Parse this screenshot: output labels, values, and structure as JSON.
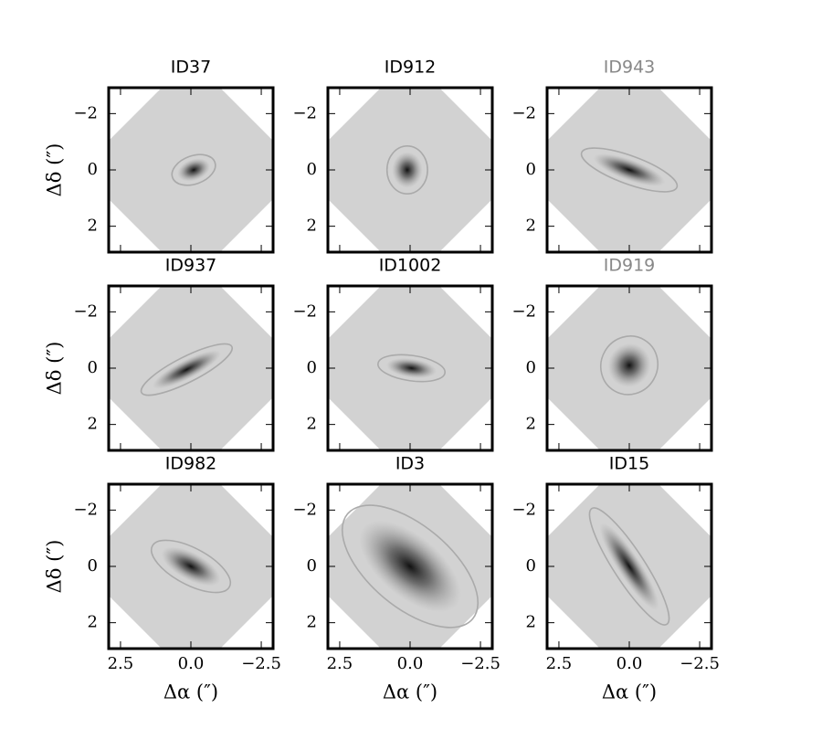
{
  "chart_data": [
    {
      "type": "image",
      "title": "ID37",
      "title_color": "#000000",
      "xlim": [
        2.92,
        -2.92
      ],
      "ylim": [
        2.92,
        -2.92
      ],
      "xticks": [
        2.5,
        0,
        -2.5
      ],
      "yticks": [
        {
          "value": -2,
          "label": "−2"
        },
        0,
        2
      ],
      "x_tick_labels": false,
      "y_tick_labels": true,
      "ylabel": "Δδ (″)",
      "ellipse": {
        "x": -0.1,
        "y": 0,
        "a": 0.8,
        "b": 0.5,
        "angle": 20
      },
      "color": "#aaaaaa"
    },
    {
      "type": "image",
      "title": "ID912",
      "title_color": "#000000",
      "xlim": [
        2.92,
        -2.92
      ],
      "ylim": [
        2.92,
        -2.92
      ],
      "xticks": [
        2.5,
        0,
        -2.5
      ],
      "yticks": [
        {
          "value": -2,
          "label": "−2"
        },
        0,
        2
      ],
      "x_tick_labels": false,
      "y_tick_labels": true,
      "ellipse": {
        "x": 0.1,
        "y": 0,
        "a": 0.85,
        "b": 0.72,
        "angle": 90
      },
      "color": "#aaaaaa"
    },
    {
      "type": "image",
      "title": "ID943",
      "title_color": "#888888",
      "xlim": [
        2.92,
        -2.92
      ],
      "ylim": [
        2.92,
        -2.92
      ],
      "xticks": [
        2.5,
        0,
        -2.5
      ],
      "yticks": [
        {
          "value": -2,
          "label": "−2"
        },
        0,
        2
      ],
      "x_tick_labels": false,
      "y_tick_labels": true,
      "ellipse": {
        "x": 0,
        "y": 0,
        "a": 1.8,
        "b": 0.5,
        "angle": -20
      },
      "color": "#aaaaaa"
    },
    {
      "type": "image",
      "title": "ID937",
      "title_color": "#000000",
      "xlim": [
        2.92,
        -2.92
      ],
      "ylim": [
        2.92,
        -2.92
      ],
      "xticks": [
        2.5,
        0,
        -2.5
      ],
      "yticks": [
        {
          "value": -2,
          "label": "−2"
        },
        0,
        2
      ],
      "x_tick_labels": false,
      "y_tick_labels": true,
      "ylabel": "Δδ (″)",
      "ellipse": {
        "x": 0.15,
        "y": 0.05,
        "a": 1.8,
        "b": 0.45,
        "angle": 27
      },
      "color": "#aaaaaa"
    },
    {
      "type": "image",
      "title": "ID1002",
      "title_color": "#000000",
      "xlim": [
        2.92,
        -2.92
      ],
      "ylim": [
        2.92,
        -2.92
      ],
      "xticks": [
        2.5,
        0,
        -2.5
      ],
      "yticks": [
        {
          "value": -2,
          "label": "−2"
        },
        0,
        2
      ],
      "x_tick_labels": false,
      "y_tick_labels": true,
      "ellipse": {
        "x": -0.05,
        "y": 0,
        "a": 1.2,
        "b": 0.45,
        "angle": -8
      },
      "color": "#aaaaaa"
    },
    {
      "type": "image",
      "title": "ID919",
      "title_color": "#888888",
      "xlim": [
        2.92,
        -2.92
      ],
      "ylim": [
        2.92,
        -2.92
      ],
      "xticks": [
        2.5,
        0,
        -2.5
      ],
      "yticks": [
        {
          "value": -2,
          "label": "−2"
        },
        0,
        2
      ],
      "x_tick_labels": false,
      "y_tick_labels": true,
      "ellipse": {
        "x": 0,
        "y": -0.1,
        "a": 1.05,
        "b": 1,
        "angle": 60
      },
      "color": "#aaaaaa"
    },
    {
      "type": "image",
      "title": "ID982",
      "title_color": "#000000",
      "xlim": [
        2.92,
        -2.92
      ],
      "ylim": [
        2.92,
        -2.92
      ],
      "xticks": [
        {
          "value": 2.5,
          "label": "2.5"
        },
        {
          "value": 0,
          "label": "0.0"
        },
        {
          "value": -2.5,
          "label": "−2.5"
        }
      ],
      "yticks": [
        {
          "value": -2,
          "label": "−2"
        },
        0,
        2
      ],
      "x_tick_labels": true,
      "y_tick_labels": true,
      "xlabel": "Δα (″)",
      "ylabel": "Δδ (″)",
      "ellipse": {
        "x": 0,
        "y": 0,
        "a": 1.55,
        "b": 0.65,
        "angle": -28
      },
      "color": "#aaaaaa"
    },
    {
      "type": "image",
      "title": "ID3",
      "title_color": "#000000",
      "xlim": [
        2.92,
        -2.92
      ],
      "ylim": [
        2.92,
        -2.92
      ],
      "xticks": [
        {
          "value": 2.5,
          "label": "2.5"
        },
        {
          "value": 0,
          "label": "0.0"
        },
        {
          "value": -2.5,
          "label": "−2.5"
        }
      ],
      "yticks": [
        {
          "value": -2,
          "label": "−2"
        },
        0,
        2
      ],
      "x_tick_labels": true,
      "y_tick_labels": true,
      "xlabel": "Δα (″)",
      "ellipse": {
        "x": 0,
        "y": 0,
        "a": 2.9,
        "b": 1.45,
        "angle": -40
      },
      "color": "#aaaaaa"
    },
    {
      "type": "image",
      "title": "ID15",
      "title_color": "#000000",
      "xlim": [
        2.92,
        -2.92
      ],
      "ylim": [
        2.92,
        -2.92
      ],
      "xticks": [
        {
          "value": 2.5,
          "label": "2.5"
        },
        {
          "value": 0,
          "label": "0.0"
        },
        {
          "value": -2.5,
          "label": "−2.5"
        }
      ],
      "yticks": [
        {
          "value": -2,
          "label": "−2"
        },
        0,
        2
      ],
      "x_tick_labels": true,
      "y_tick_labels": true,
      "xlabel": "Δα (″)",
      "ellipse": {
        "x": 0,
        "y": 0,
        "a": 2.45,
        "b": 0.55,
        "angle": -57
      },
      "color": "#aaaaaa"
    }
  ]
}
